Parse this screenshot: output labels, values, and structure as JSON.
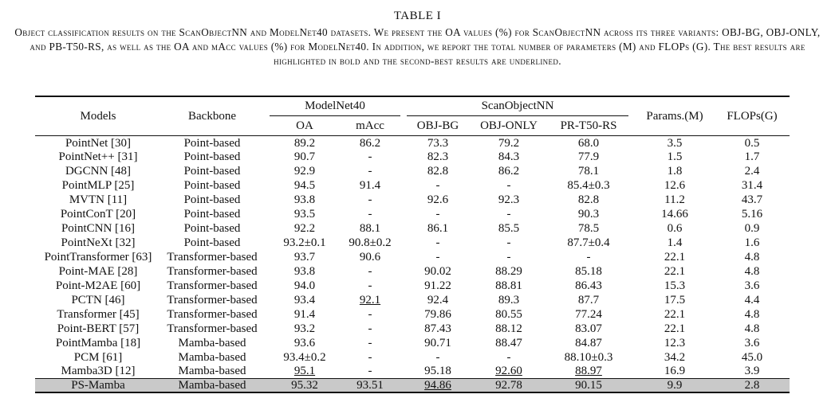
{
  "table_label": "TABLE I",
  "caption": "Object classification results on the ScanObjectNN and ModelNet40 datasets. We present the OA values (%) for ScanObjectNN across its three variants: OBJ-BG, OBJ-ONLY, and PB-T50-RS, as well as the OA and mAcc values (%) for ModelNet40. In addition, we report the total number of parameters (M) and FLOPs (G). The best results are highlighted in bold and the second-best results are underlined.",
  "headers": {
    "models": "Models",
    "backbone": "Backbone",
    "modelnet40": "ModelNet40",
    "scanobjectnn": "ScanObjectNN",
    "params": "Params.(M)",
    "flops": "FLOPs(G)",
    "oa": "OA",
    "macc": "mAcc",
    "obj_bg": "OBJ-BG",
    "obj_only": "OBJ-ONLY",
    "pr_t50_rs": "PR-T50-RS"
  },
  "rows": [
    [
      "PointNet [30]",
      "Point-based",
      "89.2",
      "86.2",
      "73.3",
      "79.2",
      "68.0",
      "3.5",
      "0.5"
    ],
    [
      "PointNet++ [31]",
      "Point-based",
      "90.7",
      "-",
      "82.3",
      "84.3",
      "77.9",
      "1.5",
      "1.7"
    ],
    [
      "DGCNN [48]",
      "Point-based",
      "92.9",
      "-",
      "82.8",
      "86.2",
      "78.1",
      "1.8",
      "2.4"
    ],
    [
      "PointMLP [25]",
      "Point-based",
      "94.5",
      "91.4",
      "-",
      "-",
      "85.4±0.3",
      "12.6",
      "31.4"
    ],
    [
      "MVTN [11]",
      "Point-based",
      "93.8",
      "-",
      "92.6",
      "92.3",
      "82.8",
      "11.2",
      "43.7"
    ],
    [
      "PointConT [20]",
      "Point-based",
      "93.5",
      "-",
      "-",
      "-",
      "90.3",
      "14.66",
      "5.16"
    ],
    [
      "PointCNN [16]",
      "Point-based",
      "92.2",
      "88.1",
      "86.1",
      "85.5",
      "78.5",
      "0.6",
      "0.9"
    ],
    [
      "PointNeXt [32]",
      "Point-based",
      "93.2±0.1",
      "90.8±0.2",
      "-",
      "-",
      "87.7±0.4",
      "1.4",
      "1.6"
    ],
    [
      "PointTransformer [63]",
      "Transformer-based",
      "93.7",
      "90.6",
      "-",
      "-",
      "-",
      "22.1",
      "4.8"
    ],
    [
      "Point-MAE [28]",
      "Transformer-based",
      "93.8",
      "-",
      "90.02",
      "88.29",
      "85.18",
      "22.1",
      "4.8"
    ],
    [
      "Point-M2AE [60]",
      "Transformer-based",
      "94.0",
      "-",
      "91.22",
      "88.81",
      "86.43",
      "15.3",
      "3.6"
    ],
    [
      "PCTN [46]",
      "Transformer-based",
      "93.4",
      "92.1",
      "92.4",
      "89.3",
      "87.7",
      "17.5",
      "4.4"
    ],
    [
      "Transformer [45]",
      "Transformer-based",
      "91.4",
      "-",
      "79.86",
      "80.55",
      "77.24",
      "22.1",
      "4.8"
    ],
    [
      "Point-BERT [57]",
      "Transformer-based",
      "93.2",
      "-",
      "87.43",
      "88.12",
      "83.07",
      "22.1",
      "4.8"
    ],
    [
      "PointMamba [18]",
      "Mamba-based",
      "93.6",
      "-",
      "90.71",
      "88.47",
      "84.87",
      "12.3",
      "3.6"
    ],
    [
      "PCM [61]",
      "Mamba-based",
      "93.4±0.2",
      "-",
      "-",
      "-",
      "88.10±0.3",
      "34.2",
      "45.0"
    ],
    [
      "Mamba3D [12]",
      "Mamba-based",
      "95.1",
      "-",
      "95.18",
      "92.60",
      "88.97",
      "16.9",
      "3.9"
    ],
    [
      "PS-Mamba",
      "Mamba-based",
      "95.32",
      "93.51",
      "94.86",
      "92.78",
      "90.15",
      "9.9",
      "2.8"
    ]
  ]
}
